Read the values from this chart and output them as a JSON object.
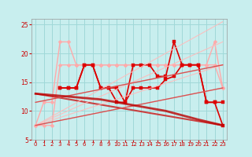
{
  "xlim": [
    -0.5,
    23.5
  ],
  "ylim": [
    5,
    26
  ],
  "yticks": [
    5,
    10,
    15,
    20,
    25
  ],
  "xticks": [
    0,
    1,
    2,
    3,
    4,
    5,
    6,
    7,
    8,
    9,
    10,
    11,
    12,
    13,
    14,
    15,
    16,
    17,
    18,
    19,
    20,
    21,
    22,
    23
  ],
  "background_color": "#c8eeee",
  "grid_color": "#a0d8d8",
  "series": [
    {
      "x": [
        0,
        1,
        2,
        3,
        4,
        5,
        6,
        7,
        8,
        9,
        10,
        11,
        12,
        13,
        14,
        15,
        16,
        17,
        18,
        19,
        20,
        21,
        22,
        23
      ],
      "y": [
        7.5,
        7.5,
        7.5,
        18,
        18,
        18,
        18,
        18,
        18,
        18,
        18,
        18,
        18,
        18,
        18,
        18,
        18,
        18,
        18,
        18,
        18,
        18,
        18,
        14
      ],
      "color": "#ffaaaa",
      "lw": 1.0,
      "marker": "D",
      "ms": 2.5,
      "alpha": 1.0
    },
    {
      "x": [
        0,
        1,
        2,
        3,
        4,
        5,
        6,
        7,
        8,
        9,
        10,
        11,
        12,
        13,
        14,
        15,
        16,
        17,
        18,
        19,
        20,
        21,
        22,
        23
      ],
      "y": [
        7.5,
        11.5,
        11.5,
        22,
        22,
        18,
        18,
        18,
        18,
        18,
        18,
        18,
        18,
        18,
        18,
        18,
        18,
        18,
        18,
        18,
        18,
        18,
        22,
        14
      ],
      "color": "#ffaaaa",
      "lw": 1.0,
      "marker": "D",
      "ms": 2.5,
      "alpha": 1.0
    },
    {
      "x": [
        3,
        4,
        5,
        6,
        7,
        8,
        9,
        10,
        11,
        12,
        13,
        14,
        15,
        16,
        17,
        18,
        19,
        20,
        21,
        22,
        23
      ],
      "y": [
        14,
        14,
        14,
        18,
        18,
        14,
        14,
        14,
        11.5,
        14,
        14,
        14,
        14,
        15.5,
        16,
        18,
        18,
        18,
        11.5,
        11.5,
        11.5
      ],
      "color": "#dd0000",
      "lw": 1.2,
      "marker": "s",
      "ms": 2.5,
      "alpha": 1.0
    },
    {
      "x": [
        3,
        4,
        5,
        6,
        7,
        8,
        9,
        10,
        11,
        12,
        13,
        14,
        15,
        16,
        17,
        18,
        19,
        20,
        21,
        22,
        23
      ],
      "y": [
        14,
        14,
        14,
        18,
        18,
        14,
        14,
        11.5,
        11.5,
        18,
        18,
        18,
        16,
        16,
        22,
        18,
        18,
        18,
        11.5,
        11.5,
        7.5
      ],
      "color": "#dd0000",
      "lw": 1.2,
      "marker": "s",
      "ms": 2.5,
      "alpha": 1.0
    },
    {
      "x": [
        0,
        23
      ],
      "y": [
        13,
        7.5
      ],
      "color": "#cc2222",
      "lw": 1.5,
      "marker": null,
      "ms": 0,
      "alpha": 0.85
    },
    {
      "x": [
        0,
        23
      ],
      "y": [
        7.5,
        14
      ],
      "color": "#ffbbbb",
      "lw": 0.8,
      "marker": null,
      "ms": 0,
      "alpha": 0.9
    },
    {
      "x": [
        0,
        23
      ],
      "y": [
        7.5,
        18
      ],
      "color": "#ffbbbb",
      "lw": 0.8,
      "marker": null,
      "ms": 0,
      "alpha": 0.9
    },
    {
      "x": [
        0,
        23
      ],
      "y": [
        7.5,
        22
      ],
      "color": "#ffbbbb",
      "lw": 0.8,
      "marker": null,
      "ms": 0,
      "alpha": 0.9
    },
    {
      "x": [
        0,
        23
      ],
      "y": [
        7.5,
        25.5
      ],
      "color": "#ffbbbb",
      "lw": 0.8,
      "marker": null,
      "ms": 0,
      "alpha": 0.9
    },
    {
      "x": [
        0,
        23
      ],
      "y": [
        11.5,
        18
      ],
      "color": "#ffbbbb",
      "lw": 0.8,
      "marker": null,
      "ms": 0,
      "alpha": 0.9
    },
    {
      "x": [
        0,
        23
      ],
      "y": [
        7.5,
        14
      ],
      "color": "#cc2222",
      "lw": 1.0,
      "marker": null,
      "ms": 0,
      "alpha": 0.7
    },
    {
      "x": [
        0,
        23
      ],
      "y": [
        11.5,
        18
      ],
      "color": "#cc2222",
      "lw": 1.0,
      "marker": null,
      "ms": 0,
      "alpha": 0.7
    },
    {
      "x": [
        0,
        4,
        8,
        12,
        16,
        20,
        23
      ],
      "y": [
        13,
        12.5,
        12,
        11,
        10,
        8.5,
        7.5
      ],
      "color": "#bb0000",
      "lw": 2.0,
      "marker": null,
      "ms": 0,
      "alpha": 0.8
    }
  ],
  "arrow_color": "#cc0000",
  "arrow_size": 4
}
